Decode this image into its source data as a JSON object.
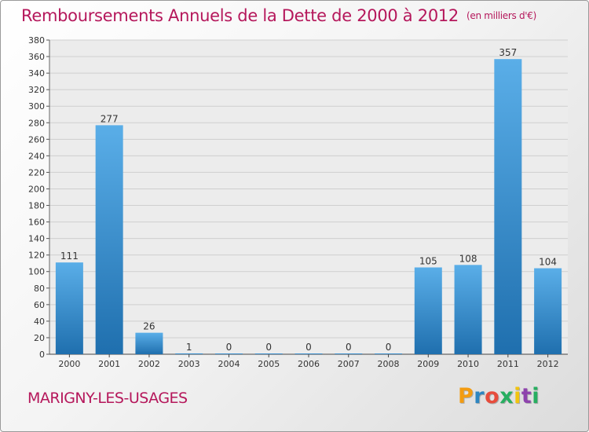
{
  "header": {
    "title": "Remboursements Annuels de la Dette de 2000 à 2012",
    "unit": "(en milliers d'€)"
  },
  "footer": {
    "commune": "MARIGNY-LES-USAGES",
    "logo_letters": [
      "P",
      "r",
      "o",
      "x",
      "i",
      "t",
      "i"
    ]
  },
  "colors": {
    "title": "#b5175b",
    "bar_light": "#5aaee8",
    "bar_dark": "#1f6fae",
    "logo": [
      "#f39c12",
      "#2e86c1",
      "#e74c3c",
      "#27ae60",
      "#f1c40f",
      "#8e44ad",
      "#27ae60"
    ]
  },
  "chart_data": {
    "type": "bar",
    "categories": [
      "2000",
      "2001",
      "2002",
      "2003",
      "2004",
      "2005",
      "2006",
      "2007",
      "2008",
      "2009",
      "2010",
      "2011",
      "2012"
    ],
    "values": [
      111,
      277,
      26,
      1,
      0,
      0,
      0,
      0,
      0,
      105,
      108,
      357,
      104
    ],
    "value_labels": [
      "111",
      "277",
      "26",
      "1",
      "0",
      "0",
      "0",
      "0",
      "0",
      "105",
      "108",
      "357",
      "104"
    ],
    "yticks": [
      0,
      20,
      40,
      60,
      80,
      100,
      120,
      140,
      160,
      180,
      200,
      220,
      240,
      260,
      280,
      300,
      320,
      340,
      360,
      380
    ],
    "ylim": [
      0,
      380
    ],
    "grid": true
  }
}
